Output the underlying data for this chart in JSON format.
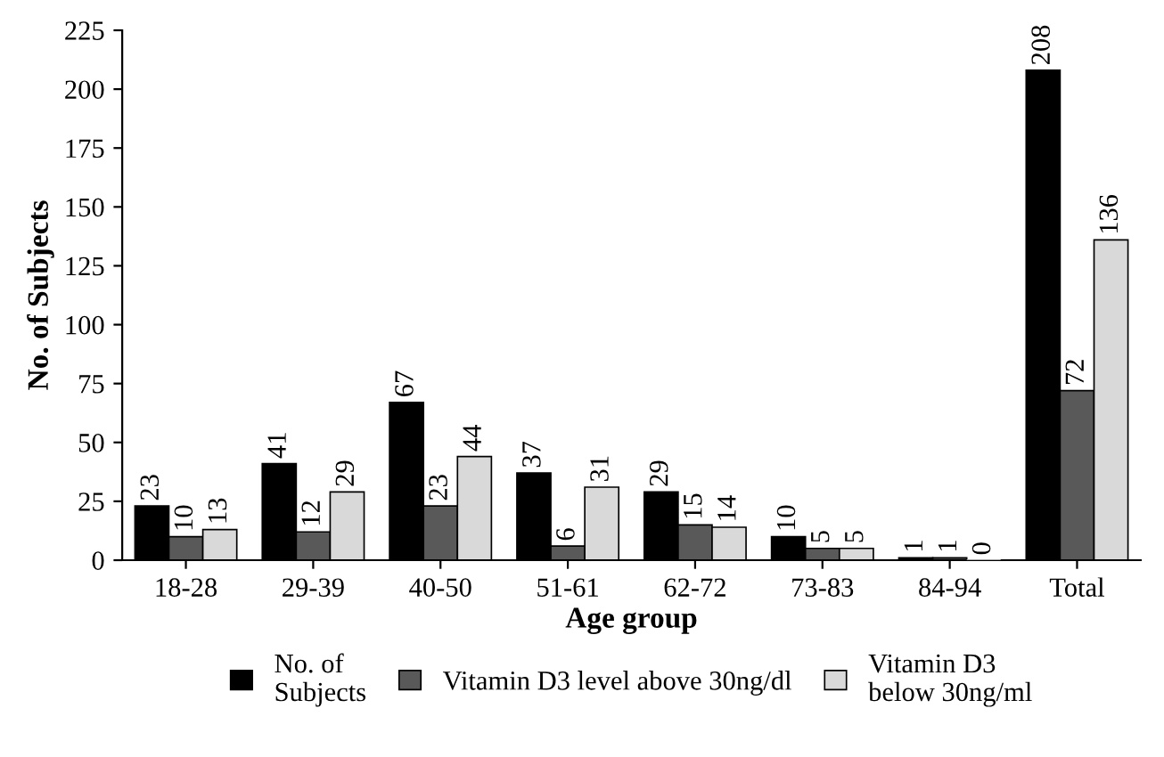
{
  "chart_data": {
    "type": "bar",
    "xlabel": "Age group",
    "ylabel": "No. of Subjects",
    "categories": [
      "18-28",
      "29-39",
      "40-50",
      "51-61",
      "62-72",
      "73-83",
      "84-94",
      "Total"
    ],
    "series": [
      {
        "name": "No. of\nSubjects",
        "color": "#000000",
        "values": [
          23,
          41,
          67,
          37,
          29,
          10,
          1,
          208
        ]
      },
      {
        "name": "Vitamin D3 level above 30ng/dl",
        "color": "#595959",
        "values": [
          10,
          12,
          23,
          6,
          15,
          5,
          1,
          72
        ]
      },
      {
        "name": "Vitamin D3\nbelow 30ng/ml",
        "color": "#d9d9d9",
        "values": [
          13,
          29,
          44,
          31,
          14,
          5,
          0,
          136
        ]
      }
    ],
    "ylim": [
      0,
      225
    ],
    "yticks": [
      0,
      25,
      50,
      75,
      100,
      125,
      150,
      175,
      200,
      225
    ],
    "data_labels": true,
    "legend": "bottom",
    "grid": false
  }
}
